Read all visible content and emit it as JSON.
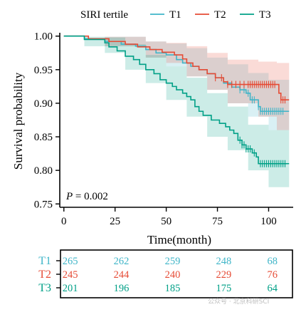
{
  "chart_data": {
    "type": "line",
    "subtype": "kaplan-meier",
    "legend": {
      "title": "SIRI tertile",
      "position": "top"
    },
    "xlabel": "Time(month)",
    "ylabel": "Survival probability",
    "xlim": [
      -2,
      112
    ],
    "ylim": [
      0.745,
      1.005
    ],
    "xticks": [
      0,
      25,
      50,
      75,
      100
    ],
    "yticks": [
      0.75,
      0.8,
      0.85,
      0.9,
      0.95,
      1.0
    ],
    "ytick_labels": [
      "0.75",
      "0.80",
      "0.85",
      "0.90",
      "0.95",
      "1.00"
    ],
    "annotation": {
      "prefix": "P",
      "text": " = 0.002"
    },
    "series": [
      {
        "name": "T1",
        "color": "#3fb5c8",
        "steps": [
          [
            0,
            1.0
          ],
          [
            10,
            0.996
          ],
          [
            20,
            0.992
          ],
          [
            28,
            0.988
          ],
          [
            35,
            0.985
          ],
          [
            40,
            0.98
          ],
          [
            45,
            0.975
          ],
          [
            50,
            0.972
          ],
          [
            55,
            0.965
          ],
          [
            58,
            0.96
          ],
          [
            62,
            0.955
          ],
          [
            66,
            0.95
          ],
          [
            70,
            0.944
          ],
          [
            74,
            0.938
          ],
          [
            78,
            0.93
          ],
          [
            82,
            0.924
          ],
          [
            86,
            0.92
          ],
          [
            89,
            0.915
          ],
          [
            91,
            0.905
          ],
          [
            95,
            0.895
          ],
          [
            96,
            0.888
          ],
          [
            110,
            0.888
          ]
        ],
        "band": [
          [
            0,
            1.0,
            1.0
          ],
          [
            20,
            0.985,
            0.999
          ],
          [
            40,
            0.968,
            0.992
          ],
          [
            50,
            0.955,
            0.989
          ],
          [
            60,
            0.94,
            0.982
          ],
          [
            70,
            0.92,
            0.968
          ],
          [
            80,
            0.9,
            0.958
          ],
          [
            90,
            0.88,
            0.945
          ],
          [
            100,
            0.86,
            0.935
          ],
          [
            110,
            0.86,
            0.935
          ]
        ],
        "censored": [
          86,
          88,
          90,
          92,
          93,
          95,
          96,
          97,
          98,
          99,
          100,
          101,
          102,
          103,
          104,
          105,
          106,
          107
        ]
      },
      {
        "name": "T2",
        "color": "#e64b35",
        "steps": [
          [
            0,
            1.0
          ],
          [
            12,
            0.996
          ],
          [
            22,
            0.992
          ],
          [
            30,
            0.988
          ],
          [
            36,
            0.984
          ],
          [
            42,
            0.98
          ],
          [
            48,
            0.976
          ],
          [
            54,
            0.972
          ],
          [
            58,
            0.966
          ],
          [
            60,
            0.96
          ],
          [
            63,
            0.955
          ],
          [
            66,
            0.95
          ],
          [
            70,
            0.944
          ],
          [
            74,
            0.938
          ],
          [
            78,
            0.932
          ],
          [
            80,
            0.928
          ],
          [
            104,
            0.928
          ],
          [
            105,
            0.915
          ],
          [
            106,
            0.905
          ],
          [
            110,
            0.905
          ]
        ],
        "band": [
          [
            0,
            1.0,
            1.0
          ],
          [
            20,
            0.985,
            0.999
          ],
          [
            40,
            0.968,
            0.992
          ],
          [
            50,
            0.96,
            0.99
          ],
          [
            60,
            0.94,
            0.985
          ],
          [
            70,
            0.92,
            0.975
          ],
          [
            80,
            0.9,
            0.965
          ],
          [
            95,
            0.88,
            0.962
          ],
          [
            104,
            0.86,
            0.96
          ],
          [
            110,
            0.86,
            0.96
          ]
        ],
        "censored": [
          74,
          77,
          80,
          82,
          84,
          86,
          88,
          90,
          91,
          92,
          93,
          94,
          95,
          96,
          97,
          98,
          99,
          100,
          101,
          102,
          103,
          106,
          107,
          108
        ]
      },
      {
        "name": "T3",
        "color": "#00a087",
        "steps": [
          [
            0,
            1.0
          ],
          [
            10,
            0.995
          ],
          [
            20,
            0.99
          ],
          [
            22,
            0.984
          ],
          [
            26,
            0.978
          ],
          [
            30,
            0.97
          ],
          [
            34,
            0.965
          ],
          [
            37,
            0.958
          ],
          [
            40,
            0.95
          ],
          [
            44,
            0.944
          ],
          [
            47,
            0.935
          ],
          [
            50,
            0.93
          ],
          [
            53,
            0.925
          ],
          [
            55,
            0.92
          ],
          [
            58,
            0.915
          ],
          [
            60,
            0.91
          ],
          [
            62,
            0.905
          ],
          [
            64,
            0.895
          ],
          [
            66,
            0.888
          ],
          [
            68,
            0.882
          ],
          [
            72,
            0.875
          ],
          [
            76,
            0.87
          ],
          [
            79,
            0.865
          ],
          [
            81,
            0.86
          ],
          [
            83,
            0.855
          ],
          [
            85,
            0.845
          ],
          [
            87,
            0.838
          ],
          [
            89,
            0.832
          ],
          [
            92,
            0.826
          ],
          [
            94,
            0.82
          ],
          [
            95,
            0.81
          ],
          [
            110,
            0.81
          ]
        ],
        "band": [
          [
            0,
            1.0,
            1.0
          ],
          [
            10,
            0.985,
            0.999
          ],
          [
            20,
            0.975,
            0.998
          ],
          [
            30,
            0.95,
            0.988
          ],
          [
            40,
            0.93,
            0.972
          ],
          [
            50,
            0.905,
            0.955
          ],
          [
            60,
            0.88,
            0.938
          ],
          [
            70,
            0.85,
            0.915
          ],
          [
            80,
            0.83,
            0.895
          ],
          [
            90,
            0.8,
            0.868
          ],
          [
            100,
            0.775,
            0.86
          ],
          [
            110,
            0.775,
            0.86
          ]
        ],
        "censored": [
          86,
          87,
          88,
          89,
          90,
          91,
          93,
          96,
          97,
          98,
          99,
          100,
          101,
          102,
          103,
          104,
          105,
          106,
          107,
          108
        ]
      }
    ],
    "risk_table": {
      "times": [
        0,
        25,
        50,
        75,
        100
      ],
      "rows": [
        {
          "name": "T1",
          "color": "#3fb5c8",
          "counts": [
            "265",
            "262",
            "259",
            "248",
            "68"
          ]
        },
        {
          "name": "T2",
          "color": "#e64b35",
          "counts": [
            "245",
            "244",
            "240",
            "229",
            "76"
          ]
        },
        {
          "name": "T3",
          "color": "#00a087",
          "counts": [
            "201",
            "196",
            "185",
            "175",
            "64"
          ]
        }
      ]
    }
  },
  "watermark": "公众号 · 北京科研SCI"
}
